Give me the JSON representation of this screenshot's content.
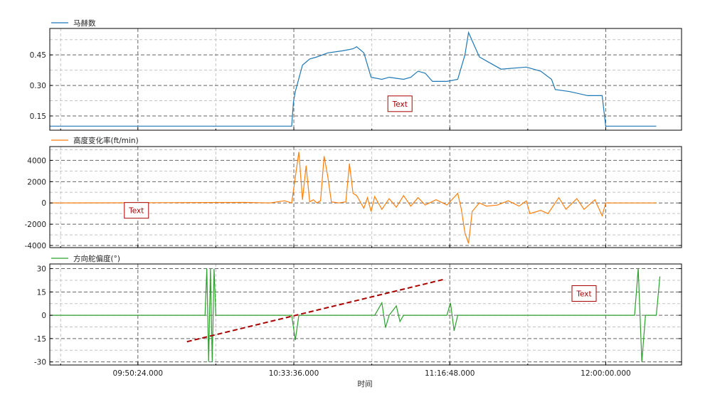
{
  "chart_data": {
    "type": "line",
    "xlabel": "时间",
    "x_range": [
      "09:26:00",
      "12:21:00"
    ],
    "x_ticks": [
      "09:50:24.000",
      "10:33:36.000",
      "11:16:48.000",
      "12:00:00.000"
    ],
    "x_minor_ticks": [
      "09:29:00",
      "10:12:00",
      "10:55:12",
      "11:38:24",
      "12:21:36"
    ],
    "grid": true,
    "legend_position": "top-left of each panel",
    "panels": [
      {
        "name": "马赫数",
        "color": "#1f77b4",
        "ylim": [
          0.08,
          0.58
        ],
        "yticks": [
          "0.15",
          "0.30",
          "0.45"
        ],
        "ytick_values": [
          0.15,
          0.3,
          0.45
        ],
        "points": [
          [
            "09:26:00",
            0.1
          ],
          [
            "10:33:00",
            0.1
          ],
          [
            "10:33:30",
            0.22
          ],
          [
            "10:34:00",
            0.27
          ],
          [
            "10:36:00",
            0.4
          ],
          [
            "10:38:00",
            0.43
          ],
          [
            "10:40:00",
            0.44
          ],
          [
            "10:43:00",
            0.46
          ],
          [
            "10:47:00",
            0.47
          ],
          [
            "10:50:00",
            0.48
          ],
          [
            "10:51:00",
            0.49
          ],
          [
            "10:53:00",
            0.46
          ],
          [
            "10:55:00",
            0.34
          ],
          [
            "10:58:00",
            0.33
          ],
          [
            "11:00:00",
            0.34
          ],
          [
            "11:04:00",
            0.33
          ],
          [
            "11:06:00",
            0.34
          ],
          [
            "11:08:00",
            0.37
          ],
          [
            "11:10:00",
            0.36
          ],
          [
            "11:12:00",
            0.32
          ],
          [
            "11:16:00",
            0.32
          ],
          [
            "11:19:00",
            0.33
          ],
          [
            "11:21:00",
            0.45
          ],
          [
            "11:22:00",
            0.56
          ],
          [
            "11:23:00",
            0.52
          ],
          [
            "11:25:00",
            0.44
          ],
          [
            "11:27:00",
            0.42
          ],
          [
            "11:31:00",
            0.38
          ],
          [
            "11:38:00",
            0.39
          ],
          [
            "11:42:00",
            0.37
          ],
          [
            "11:45:00",
            0.33
          ],
          [
            "11:46:00",
            0.28
          ],
          [
            "11:50:00",
            0.27
          ],
          [
            "11:55:00",
            0.25
          ],
          [
            "11:59:00",
            0.25
          ],
          [
            "12:00:00",
            0.1
          ],
          [
            "12:14:00",
            0.1
          ]
        ]
      },
      {
        "name": "高度变化率(ft/min)",
        "color": "#ff7f0e",
        "ylim": [
          -4200,
          5300
        ],
        "yticks": [
          "4000",
          "2000",
          "0",
          "-2000",
          "-4000"
        ],
        "ytick_values": [
          4000,
          2000,
          0,
          -2000,
          -4000
        ],
        "points": [
          [
            "09:26:00",
            0
          ],
          [
            "09:40:00",
            10
          ],
          [
            "10:00:00",
            30
          ],
          [
            "10:20:00",
            50
          ],
          [
            "10:27:00",
            0
          ],
          [
            "10:31:00",
            200
          ],
          [
            "10:33:00",
            0
          ],
          [
            "10:35:00",
            4800
          ],
          [
            "10:36:00",
            300
          ],
          [
            "10:37:00",
            3500
          ],
          [
            "10:38:00",
            100
          ],
          [
            "10:39:00",
            300
          ],
          [
            "10:40:00",
            0
          ],
          [
            "10:41:00",
            200
          ],
          [
            "10:42:00",
            4400
          ],
          [
            "10:43:00",
            2500
          ],
          [
            "10:44:00",
            100
          ],
          [
            "10:46:00",
            0
          ],
          [
            "10:48:00",
            100
          ],
          [
            "10:49:00",
            3700
          ],
          [
            "10:50:00",
            900
          ],
          [
            "10:51:00",
            700
          ],
          [
            "10:52:00",
            100
          ],
          [
            "10:53:00",
            -500
          ],
          [
            "10:54:00",
            500
          ],
          [
            "10:55:00",
            -800
          ],
          [
            "10:56:00",
            600
          ],
          [
            "10:58:00",
            -600
          ],
          [
            "11:00:00",
            400
          ],
          [
            "11:02:00",
            -400
          ],
          [
            "11:04:00",
            700
          ],
          [
            "11:06:00",
            -300
          ],
          [
            "11:08:00",
            500
          ],
          [
            "11:10:00",
            -200
          ],
          [
            "11:13:00",
            300
          ],
          [
            "11:16:00",
            -200
          ],
          [
            "11:19:00",
            900
          ],
          [
            "11:20:00",
            -600
          ],
          [
            "11:21:00",
            -2800
          ],
          [
            "11:22:00",
            -3800
          ],
          [
            "11:23:00",
            -800
          ],
          [
            "11:25:00",
            0
          ],
          [
            "11:27:00",
            -300
          ],
          [
            "11:30:00",
            -200
          ],
          [
            "11:33:00",
            200
          ],
          [
            "11:36:00",
            -300
          ],
          [
            "11:38:00",
            200
          ],
          [
            "11:39:00",
            -1000
          ],
          [
            "11:42:00",
            -700
          ],
          [
            "11:44:00",
            -1000
          ],
          [
            "11:47:00",
            500
          ],
          [
            "11:49:00",
            -600
          ],
          [
            "11:52:00",
            400
          ],
          [
            "11:54:00",
            -600
          ],
          [
            "11:57:00",
            300
          ],
          [
            "11:59:00",
            -1200
          ],
          [
            "12:00:00",
            0
          ],
          [
            "12:14:00",
            0
          ]
        ]
      },
      {
        "name": "方向舵偏度(°)",
        "color": "#2ca02c",
        "ylim": [
          -32,
          33
        ],
        "yticks": [
          "30",
          "15",
          "0",
          "-15",
          "-30"
        ],
        "ytick_values": [
          30,
          15,
          0,
          -15,
          -30
        ],
        "points": [
          [
            "09:26:00",
            0
          ],
          [
            "10:09:00",
            0
          ],
          [
            "10:09:30",
            30
          ],
          [
            "10:10:00",
            -30
          ],
          [
            "10:10:30",
            30
          ],
          [
            "10:11:00",
            -30
          ],
          [
            "10:11:30",
            30
          ],
          [
            "10:12:00",
            0
          ],
          [
            "10:33:00",
            0
          ],
          [
            "10:34:00",
            -16
          ],
          [
            "10:35:00",
            0
          ],
          [
            "10:56:00",
            0
          ],
          [
            "10:58:00",
            8
          ],
          [
            "10:59:00",
            -8
          ],
          [
            "11:00:00",
            0
          ],
          [
            "11:02:00",
            6
          ],
          [
            "11:03:00",
            -4
          ],
          [
            "11:04:00",
            0
          ],
          [
            "11:16:00",
            0
          ],
          [
            "11:17:00",
            8
          ],
          [
            "11:18:00",
            -10
          ],
          [
            "11:19:00",
            0
          ],
          [
            "12:00:00",
            0
          ],
          [
            "12:08:00",
            0
          ],
          [
            "12:09:00",
            30
          ],
          [
            "12:10:00",
            -30
          ],
          [
            "12:11:00",
            0
          ],
          [
            "12:14:00",
            0
          ],
          [
            "12:15:00",
            25
          ]
        ]
      }
    ],
    "annotations": [
      {
        "panel": 0,
        "text": "Text",
        "x": "11:03:00",
        "y": 0.21
      },
      {
        "panel": 1,
        "text": "Text",
        "x": "09:50:00",
        "y": -700
      },
      {
        "panel": 2,
        "text": "Text",
        "x": "11:54:00",
        "y": 14
      }
    ],
    "trend_line": {
      "panel": 2,
      "color": "#aa0000",
      "from": [
        "10:04:00",
        -17
      ],
      "to": [
        "11:15:00",
        23
      ]
    }
  }
}
